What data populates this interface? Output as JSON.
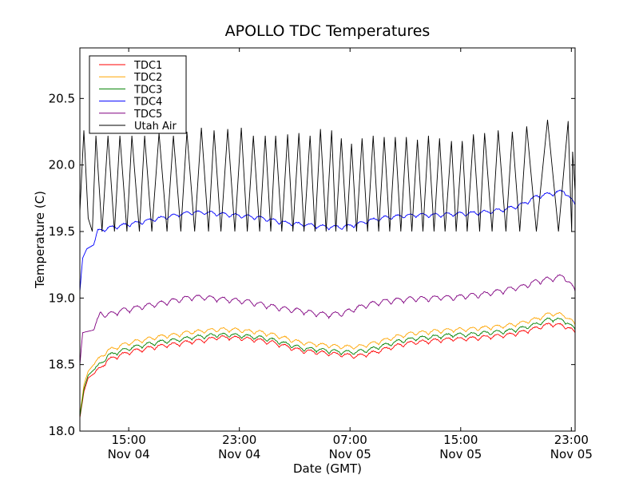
{
  "chart_data": {
    "type": "line",
    "title": "APOLLO TDC Temperatures",
    "xlabel": "Date (GMT)",
    "ylabel": "Temperature (C)",
    "x_units": "hours since Nov 04 11:28 GMT",
    "xlim": [
      0,
      35.8
    ],
    "ylim": [
      18.0,
      20.88
    ],
    "grid": false,
    "legend_position": "top-left",
    "yticks": [
      {
        "value": 18.0,
        "label": "18.0"
      },
      {
        "value": 18.5,
        "label": "18.5"
      },
      {
        "value": 19.0,
        "label": "19.0"
      },
      {
        "value": 19.5,
        "label": "19.5"
      },
      {
        "value": 20.0,
        "label": "20.0"
      },
      {
        "value": 20.5,
        "label": "20.5"
      }
    ],
    "xticks": [
      {
        "value": 3.53,
        "label": "15:00",
        "sublabel": "Nov 04"
      },
      {
        "value": 11.53,
        "label": "23:00",
        "sublabel": "Nov 04"
      },
      {
        "value": 19.53,
        "label": "07:00",
        "sublabel": "Nov 05"
      },
      {
        "value": 27.53,
        "label": "15:00",
        "sublabel": "Nov 05"
      },
      {
        "value": 35.53,
        "label": "23:00",
        "sublabel": "Nov 05"
      }
    ],
    "series": [
      {
        "name": "TDC1",
        "color": "#ff0000",
        "ripple": 0.06,
        "points": [
          [
            0,
            18.1
          ],
          [
            0.3,
            18.3
          ],
          [
            0.6,
            18.4
          ],
          [
            1.0,
            18.43
          ],
          [
            1.5,
            18.47
          ],
          [
            2.0,
            18.53
          ],
          [
            3.0,
            18.57
          ],
          [
            4.0,
            18.6
          ],
          [
            5.0,
            18.62
          ],
          [
            6.0,
            18.64
          ],
          [
            7.0,
            18.65
          ],
          [
            8.0,
            18.67
          ],
          [
            9.0,
            18.68
          ],
          [
            10.0,
            18.7
          ],
          [
            11.0,
            18.7
          ],
          [
            12.0,
            18.69
          ],
          [
            13.0,
            18.68
          ],
          [
            14.0,
            18.66
          ],
          [
            15.0,
            18.63
          ],
          [
            16.0,
            18.6
          ],
          [
            17.0,
            18.59
          ],
          [
            18.0,
            18.58
          ],
          [
            19.0,
            18.57
          ],
          [
            20.0,
            18.56
          ],
          [
            21.0,
            18.58
          ],
          [
            22.0,
            18.61
          ],
          [
            23.0,
            18.64
          ],
          [
            24.0,
            18.66
          ],
          [
            25.0,
            18.67
          ],
          [
            26.0,
            18.68
          ],
          [
            27.0,
            18.69
          ],
          [
            28.0,
            18.69
          ],
          [
            29.0,
            18.7
          ],
          [
            30.0,
            18.71
          ],
          [
            31.0,
            18.72
          ],
          [
            32.0,
            18.74
          ],
          [
            33.0,
            18.77
          ],
          [
            34.0,
            18.8
          ],
          [
            35.0,
            18.79
          ],
          [
            35.8,
            18.74
          ]
        ]
      },
      {
        "name": "TDC2",
        "color": "#ffa500",
        "ripple": 0.06,
        "points": [
          [
            0,
            18.12
          ],
          [
            0.3,
            18.35
          ],
          [
            0.6,
            18.45
          ],
          [
            1.0,
            18.5
          ],
          [
            1.5,
            18.55
          ],
          [
            2.0,
            18.6
          ],
          [
            3.0,
            18.64
          ],
          [
            4.0,
            18.67
          ],
          [
            5.0,
            18.69
          ],
          [
            6.0,
            18.71
          ],
          [
            7.0,
            18.72
          ],
          [
            8.0,
            18.74
          ],
          [
            9.0,
            18.75
          ],
          [
            10.0,
            18.76
          ],
          [
            11.0,
            18.76
          ],
          [
            12.0,
            18.75
          ],
          [
            13.0,
            18.74
          ],
          [
            14.0,
            18.72
          ],
          [
            15.0,
            18.69
          ],
          [
            16.0,
            18.66
          ],
          [
            17.0,
            18.65
          ],
          [
            18.0,
            18.64
          ],
          [
            19.0,
            18.63
          ],
          [
            20.0,
            18.63
          ],
          [
            21.0,
            18.65
          ],
          [
            22.0,
            18.68
          ],
          [
            23.0,
            18.71
          ],
          [
            24.0,
            18.73
          ],
          [
            25.0,
            18.74
          ],
          [
            26.0,
            18.75
          ],
          [
            27.0,
            18.76
          ],
          [
            28.0,
            18.76
          ],
          [
            29.0,
            18.77
          ],
          [
            30.0,
            18.78
          ],
          [
            31.0,
            18.79
          ],
          [
            32.0,
            18.81
          ],
          [
            33.0,
            18.84
          ],
          [
            34.0,
            18.88
          ],
          [
            35.0,
            18.87
          ],
          [
            35.8,
            18.8
          ]
        ]
      },
      {
        "name": "TDC3",
        "color": "#008000",
        "ripple": 0.06,
        "points": [
          [
            0,
            18.11
          ],
          [
            0.3,
            18.32
          ],
          [
            0.6,
            18.42
          ],
          [
            1.0,
            18.46
          ],
          [
            1.5,
            18.5
          ],
          [
            2.0,
            18.56
          ],
          [
            3.0,
            18.6
          ],
          [
            4.0,
            18.63
          ],
          [
            5.0,
            18.65
          ],
          [
            6.0,
            18.67
          ],
          [
            7.0,
            18.68
          ],
          [
            8.0,
            18.7
          ],
          [
            9.0,
            18.71
          ],
          [
            10.0,
            18.72
          ],
          [
            11.0,
            18.72
          ],
          [
            12.0,
            18.71
          ],
          [
            13.0,
            18.7
          ],
          [
            14.0,
            18.68
          ],
          [
            15.0,
            18.65
          ],
          [
            16.0,
            18.62
          ],
          [
            17.0,
            18.61
          ],
          [
            18.0,
            18.6
          ],
          [
            19.0,
            18.59
          ],
          [
            20.0,
            18.59
          ],
          [
            21.0,
            18.61
          ],
          [
            22.0,
            18.64
          ],
          [
            23.0,
            18.67
          ],
          [
            24.0,
            18.69
          ],
          [
            25.0,
            18.7
          ],
          [
            26.0,
            18.71
          ],
          [
            27.0,
            18.72
          ],
          [
            28.0,
            18.72
          ],
          [
            29.0,
            18.73
          ],
          [
            30.0,
            18.74
          ],
          [
            31.0,
            18.75
          ],
          [
            32.0,
            18.77
          ],
          [
            33.0,
            18.8
          ],
          [
            34.0,
            18.84
          ],
          [
            35.0,
            18.83
          ],
          [
            35.8,
            18.76
          ]
        ]
      },
      {
        "name": "TDC4",
        "color": "#0000ff",
        "ripple": 0.06,
        "points": [
          [
            0,
            19.05
          ],
          [
            0.2,
            19.3
          ],
          [
            0.5,
            19.37
          ],
          [
            1.0,
            19.4
          ],
          [
            1.3,
            19.5
          ],
          [
            2.0,
            19.52
          ],
          [
            3.0,
            19.54
          ],
          [
            4.0,
            19.56
          ],
          [
            5.0,
            19.58
          ],
          [
            6.0,
            19.6
          ],
          [
            7.0,
            19.62
          ],
          [
            8.0,
            19.64
          ],
          [
            9.0,
            19.64
          ],
          [
            10.0,
            19.63
          ],
          [
            11.0,
            19.62
          ],
          [
            12.0,
            19.61
          ],
          [
            13.0,
            19.6
          ],
          [
            14.0,
            19.58
          ],
          [
            15.0,
            19.56
          ],
          [
            16.0,
            19.55
          ],
          [
            17.0,
            19.54
          ],
          [
            18.0,
            19.53
          ],
          [
            19.0,
            19.53
          ],
          [
            20.0,
            19.55
          ],
          [
            21.0,
            19.58
          ],
          [
            22.0,
            19.6
          ],
          [
            23.0,
            19.61
          ],
          [
            24.0,
            19.62
          ],
          [
            25.0,
            19.62
          ],
          [
            26.0,
            19.62
          ],
          [
            27.0,
            19.63
          ],
          [
            28.0,
            19.63
          ],
          [
            29.0,
            19.64
          ],
          [
            30.0,
            19.65
          ],
          [
            31.0,
            19.67
          ],
          [
            32.0,
            19.7
          ],
          [
            33.0,
            19.76
          ],
          [
            34.0,
            19.78
          ],
          [
            35.0,
            19.8
          ],
          [
            35.8,
            19.7
          ]
        ]
      },
      {
        "name": "TDC5",
        "color": "#800080",
        "ripple": 0.08,
        "points": [
          [
            0,
            18.5
          ],
          [
            0.2,
            18.74
          ],
          [
            1.0,
            18.76
          ],
          [
            1.5,
            18.88
          ],
          [
            2.0,
            18.87
          ],
          [
            3.0,
            18.9
          ],
          [
            4.0,
            18.92
          ],
          [
            5.0,
            18.94
          ],
          [
            6.0,
            18.96
          ],
          [
            7.0,
            18.98
          ],
          [
            8.0,
            19.0
          ],
          [
            9.0,
            19.0
          ],
          [
            10.0,
            18.99
          ],
          [
            11.0,
            18.98
          ],
          [
            12.0,
            18.97
          ],
          [
            13.0,
            18.95
          ],
          [
            14.0,
            18.93
          ],
          [
            15.0,
            18.91
          ],
          [
            16.0,
            18.9
          ],
          [
            17.0,
            18.88
          ],
          [
            18.0,
            18.87
          ],
          [
            19.0,
            18.88
          ],
          [
            20.0,
            18.92
          ],
          [
            21.0,
            18.95
          ],
          [
            22.0,
            18.97
          ],
          [
            23.0,
            18.98
          ],
          [
            24.0,
            18.99
          ],
          [
            25.0,
            18.99
          ],
          [
            26.0,
            19.0
          ],
          [
            27.0,
            19.0
          ],
          [
            28.0,
            19.01
          ],
          [
            29.0,
            19.02
          ],
          [
            30.0,
            19.04
          ],
          [
            31.0,
            19.06
          ],
          [
            32.0,
            19.08
          ],
          [
            33.0,
            19.12
          ],
          [
            34.0,
            19.14
          ],
          [
            35.0,
            19.16
          ],
          [
            35.8,
            19.05
          ]
        ]
      },
      {
        "name": "Utah Air",
        "color": "#000000",
        "ripple": 0,
        "points": [
          [
            0,
            19.65
          ],
          [
            0.29,
            20.26
          ],
          [
            0.6,
            19.6
          ],
          [
            0.9,
            19.5
          ],
          [
            1.16,
            20.22
          ],
          [
            1.6,
            19.5
          ],
          [
            2.03,
            20.22
          ],
          [
            2.5,
            19.5
          ],
          [
            2.89,
            20.22
          ],
          [
            3.4,
            19.5
          ],
          [
            3.76,
            20.22
          ],
          [
            4.3,
            19.5
          ],
          [
            4.68,
            20.22
          ],
          [
            5.2,
            19.5
          ],
          [
            5.72,
            20.24
          ],
          [
            6.3,
            19.5
          ],
          [
            6.76,
            20.22
          ],
          [
            7.3,
            19.5
          ],
          [
            7.74,
            20.25
          ],
          [
            8.3,
            19.5
          ],
          [
            8.78,
            20.28
          ],
          [
            9.3,
            19.5
          ],
          [
            9.7,
            20.26
          ],
          [
            10.2,
            19.5
          ],
          [
            10.69,
            20.27
          ],
          [
            11.2,
            19.5
          ],
          [
            11.67,
            20.28
          ],
          [
            12.1,
            19.5
          ],
          [
            12.54,
            20.22
          ],
          [
            13.0,
            19.5
          ],
          [
            13.4,
            20.22
          ],
          [
            13.8,
            19.5
          ],
          [
            14.15,
            20.22
          ],
          [
            14.6,
            19.5
          ],
          [
            15.02,
            20.23
          ],
          [
            15.4,
            19.5
          ],
          [
            15.83,
            20.24
          ],
          [
            16.2,
            19.5
          ],
          [
            16.64,
            20.22
          ],
          [
            17.0,
            19.5
          ],
          [
            17.39,
            20.27
          ],
          [
            17.8,
            19.5
          ],
          [
            18.2,
            20.26
          ],
          [
            18.5,
            19.5
          ],
          [
            18.9,
            20.2
          ],
          [
            19.3,
            19.5
          ],
          [
            19.64,
            20.16
          ],
          [
            20.0,
            19.5
          ],
          [
            20.4,
            20.2
          ],
          [
            20.8,
            19.5
          ],
          [
            21.2,
            20.22
          ],
          [
            21.6,
            19.5
          ],
          [
            22.0,
            20.21
          ],
          [
            22.4,
            19.5
          ],
          [
            22.8,
            20.21
          ],
          [
            23.2,
            19.5
          ],
          [
            23.6,
            20.21
          ],
          [
            24.0,
            19.5
          ],
          [
            24.4,
            20.19
          ],
          [
            24.8,
            19.5
          ],
          [
            25.2,
            20.22
          ],
          [
            25.6,
            19.5
          ],
          [
            26.0,
            20.2
          ],
          [
            26.4,
            19.5
          ],
          [
            26.86,
            20.18
          ],
          [
            27.2,
            19.5
          ],
          [
            27.64,
            20.18
          ],
          [
            28.0,
            19.5
          ],
          [
            28.45,
            20.23
          ],
          [
            28.9,
            19.5
          ],
          [
            29.26,
            20.24
          ],
          [
            29.8,
            19.5
          ],
          [
            30.24,
            20.26
          ],
          [
            30.8,
            19.5
          ],
          [
            31.26,
            20.25
          ],
          [
            31.8,
            19.5
          ],
          [
            32.3,
            20.29
          ],
          [
            33.0,
            19.5
          ],
          [
            33.81,
            20.34
          ],
          [
            34.6,
            19.5
          ],
          [
            35.3,
            20.33
          ],
          [
            35.55,
            19.5
          ],
          [
            35.62,
            20.1
          ],
          [
            35.8,
            19.8
          ]
        ]
      }
    ]
  }
}
